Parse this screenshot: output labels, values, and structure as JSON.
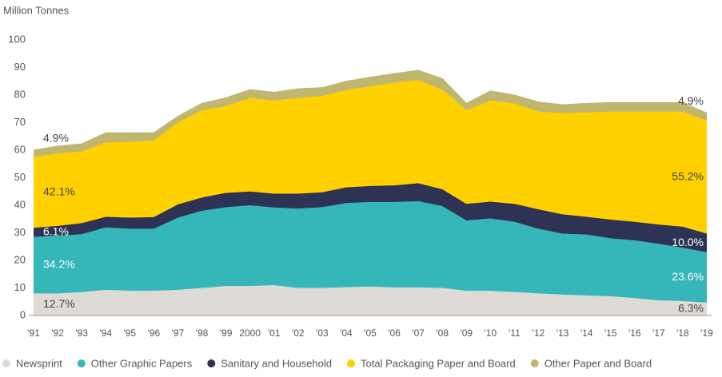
{
  "chart_data": {
    "type": "stacked_area",
    "ylabel": "Million Tonnes",
    "categories": [
      "'91",
      "'92",
      "'93",
      "'94",
      "'95",
      "'96",
      "'97",
      "'98",
      "'99",
      "2000",
      "'01",
      "'02",
      "'03",
      "'04",
      "'05",
      "'06",
      "'07",
      "'08",
      "'09",
      "'10",
      "'11",
      "'12",
      "'13",
      "'14",
      "'15",
      "'16",
      "'17",
      "'18",
      "'19"
    ],
    "series": [
      {
        "name": "Newsprint",
        "color": "#dedad5",
        "labels": [
          "12.7%",
          "6.3%"
        ],
        "values": [
          8,
          8,
          8.5,
          9.3,
          9,
          9,
          9.3,
          10,
          10.7,
          10.7,
          11,
          10,
          10,
          10.3,
          10.5,
          10.2,
          10.2,
          10,
          9,
          9,
          8.5,
          8,
          7.6,
          7.3,
          7,
          6.3,
          5.5,
          5.2,
          4.7
        ]
      },
      {
        "name": "Other Graphic Papers",
        "color": "#35b6b9",
        "labels": [
          "34.2%",
          "23.6%"
        ],
        "values": [
          20.5,
          21,
          21,
          22.7,
          22.5,
          22.5,
          26.2,
          28,
          28.6,
          29.3,
          28.2,
          28.8,
          29.3,
          30.5,
          30.7,
          31,
          31.3,
          29.7,
          25.5,
          26.2,
          25.5,
          23.5,
          22.1,
          22.1,
          21,
          21,
          20.5,
          19.4,
          18.3
        ]
      },
      {
        "name": "Sanitary and Household",
        "color": "#2e3355",
        "labels": [
          "6.1%",
          "10.0%"
        ],
        "values": [
          3.3,
          3.5,
          4,
          3.8,
          4,
          4.2,
          4.8,
          4.8,
          5.2,
          5,
          5,
          5.4,
          5.4,
          5.7,
          5.8,
          6,
          6.5,
          6.1,
          6,
          6.1,
          6.5,
          7,
          7,
          6.4,
          6.8,
          6.7,
          7,
          7.6,
          6.7
        ]
      },
      {
        "name": "Total Packaging Paper and Board",
        "color": "#ffd100",
        "labels": [
          "42.1%",
          "55.2%"
        ],
        "values": [
          25.7,
          26.3,
          26,
          27,
          27.5,
          27.8,
          29.7,
          31.7,
          31.5,
          34,
          33.8,
          34.8,
          35,
          35.3,
          36.2,
          37.3,
          37.5,
          36.2,
          34,
          36.7,
          36.5,
          35.5,
          36.8,
          37.9,
          39.2,
          40,
          41,
          41.8,
          41
        ]
      },
      {
        "name": "Other Paper and Board",
        "color": "#bfb670",
        "labels": [
          "4.9%",
          "4.9%"
        ],
        "values": [
          2.5,
          2.7,
          2.8,
          3.5,
          3.3,
          2.8,
          2.3,
          2.5,
          3,
          3,
          3,
          3.3,
          3,
          3.2,
          3.3,
          3.3,
          3.5,
          4,
          2.5,
          3.5,
          3,
          3.5,
          3,
          3.3,
          3.3,
          3.3,
          3.3,
          3.3,
          2.8
        ]
      }
    ],
    "ylim": [
      0,
      100
    ],
    "yticks": [
      0,
      10,
      20,
      30,
      40,
      50,
      60,
      70,
      80,
      90,
      100
    ],
    "grid": false,
    "legend": "bottom"
  }
}
